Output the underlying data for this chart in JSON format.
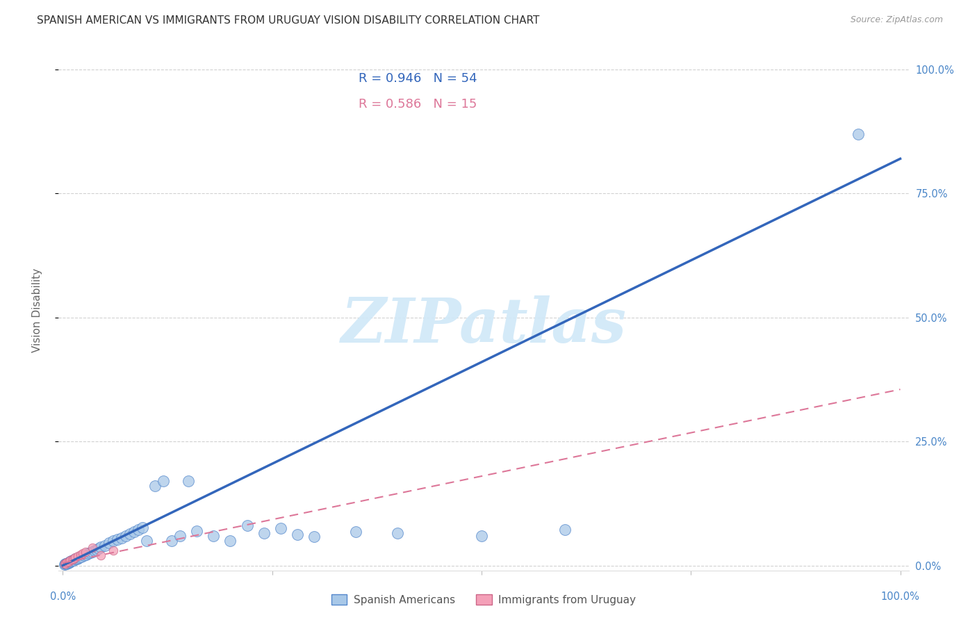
{
  "title": "SPANISH AMERICAN VS IMMIGRANTS FROM URUGUAY VISION DISABILITY CORRELATION CHART",
  "source": "Source: ZipAtlas.com",
  "ylabel": "Vision Disability",
  "ytick_positions": [
    0.0,
    0.25,
    0.5,
    0.75,
    1.0
  ],
  "ytick_labels": [
    "0.0%",
    "25.0%",
    "50.0%",
    "75.0%",
    "100.0%"
  ],
  "xtick_positions": [
    0.0,
    0.25,
    0.5,
    0.75,
    1.0
  ],
  "xtick_labels": [
    "0.0%",
    "25.0%",
    "50.0%",
    "75.0%",
    "100.0%"
  ],
  "blue_color": "#a8c8e8",
  "blue_edge_color": "#5588cc",
  "blue_line_color": "#3366bb",
  "pink_color": "#f4a0b8",
  "pink_edge_color": "#cc6688",
  "pink_line_color": "#dd7799",
  "watermark_color": "#d0e8f8",
  "background_color": "#ffffff",
  "grid_color": "#cccccc",
  "title_color": "#333333",
  "axis_tick_color": "#4a86c8",
  "legend_box_edge": "#cccccc",
  "legend_r1_color": "#3366bb",
  "legend_r2_color": "#dd7799",
  "blue_line_x": [
    0.0,
    1.0
  ],
  "blue_line_y": [
    0.0,
    0.82
  ],
  "pink_line_x": [
    0.0,
    1.0
  ],
  "pink_line_y": [
    0.005,
    0.355
  ],
  "blue_scatter_x": [
    0.002,
    0.003,
    0.004,
    0.005,
    0.006,
    0.007,
    0.008,
    0.009,
    0.01,
    0.012,
    0.013,
    0.015,
    0.017,
    0.018,
    0.02,
    0.022,
    0.025,
    0.028,
    0.03,
    0.033,
    0.035,
    0.038,
    0.04,
    0.043,
    0.045,
    0.05,
    0.055,
    0.06,
    0.065,
    0.07,
    0.075,
    0.08,
    0.085,
    0.09,
    0.095,
    0.1,
    0.11,
    0.12,
    0.13,
    0.14,
    0.15,
    0.16,
    0.18,
    0.2,
    0.22,
    0.24,
    0.26,
    0.28,
    0.3,
    0.35,
    0.4,
    0.5,
    0.6,
    0.95
  ],
  "blue_scatter_y": [
    0.002,
    0.003,
    0.004,
    0.004,
    0.005,
    0.006,
    0.007,
    0.008,
    0.009,
    0.01,
    0.011,
    0.013,
    0.014,
    0.015,
    0.016,
    0.018,
    0.02,
    0.022,
    0.024,
    0.026,
    0.028,
    0.03,
    0.032,
    0.034,
    0.037,
    0.04,
    0.045,
    0.05,
    0.052,
    0.055,
    0.06,
    0.064,
    0.068,
    0.072,
    0.076,
    0.05,
    0.16,
    0.17,
    0.05,
    0.06,
    0.17,
    0.07,
    0.06,
    0.05,
    0.08,
    0.065,
    0.075,
    0.062,
    0.058,
    0.068,
    0.065,
    0.06,
    0.072,
    0.87
  ],
  "pink_scatter_x": [
    0.002,
    0.003,
    0.005,
    0.007,
    0.009,
    0.011,
    0.013,
    0.015,
    0.018,
    0.021,
    0.024,
    0.027,
    0.035,
    0.045,
    0.06
  ],
  "pink_scatter_y": [
    0.003,
    0.004,
    0.006,
    0.008,
    0.01,
    0.012,
    0.014,
    0.016,
    0.019,
    0.022,
    0.025,
    0.028,
    0.036,
    0.02,
    0.03
  ],
  "legend_label_1": "R = 0.946",
  "legend_n_1": "N = 54",
  "legend_label_2": "R = 0.586",
  "legend_n_2": "N = 15",
  "bottom_legend_1": "Spanish Americans",
  "bottom_legend_2": "Immigrants from Uruguay"
}
